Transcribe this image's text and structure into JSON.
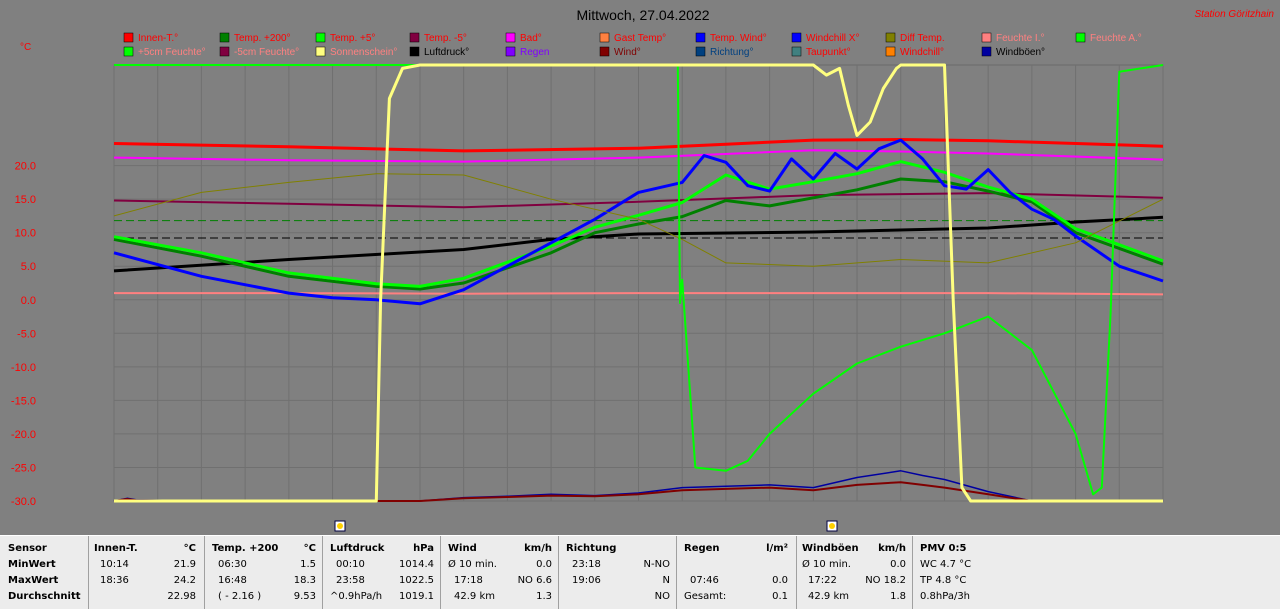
{
  "header": {
    "title": "Mittwoch, 27.04.2022",
    "station": "Station Göritzhain",
    "unit": "°C"
  },
  "colors": {
    "background": "#808080",
    "innen": "#ff0000",
    "temp200": "#008000",
    "temp5": "#00ff00",
    "temp_minus5": "#800040",
    "bad": "#ff00ff",
    "luftdruck": "#000000",
    "wind": "#800000",
    "windboeen": "#0000a0",
    "sonnenschein": "#ffff80",
    "temp_wind": "#0000ff",
    "feuchte_i": "#ff8080"
  },
  "legend": [
    {
      "label": "Innen-T.°",
      "color": "#ff0000",
      "text_color": "#ff0000"
    },
    {
      "label": "Temp. +200°",
      "color": "#008000",
      "text_color": "#ff0000"
    },
    {
      "label": "Temp. +5°",
      "color": "#00ff00",
      "text_color": "#ff0000"
    },
    {
      "label": "Temp. -5°",
      "color": "#800040",
      "text_color": "#ff0000"
    },
    {
      "label": "Bad°",
      "color": "#ff00ff",
      "text_color": "#ff0000"
    },
    {
      "label": "Gast Temp°",
      "color": "#ff8040",
      "text_color": "#ff0000"
    },
    {
      "label": "Temp. Wind°",
      "color": "#0000ff",
      "text_color": "#ff0000"
    },
    {
      "label": "Windchill X°",
      "color": "#0000ff",
      "text_color": "#ff0000"
    },
    {
      "label": "Diff Temp.",
      "color": "#808000",
      "text_color": "#ff0000"
    },
    {
      "label": "Feuchte I.°",
      "color": "#ff8080",
      "text_color": "#ff8080"
    },
    {
      "label": "Feuchte A.°",
      "color": "#00ff00",
      "text_color": "#ff8080"
    },
    {
      "label": "+5cm Feuchte°",
      "color": "#00ff00",
      "text_color": "#ff8080"
    },
    {
      "label": "-5cm Feuchte°",
      "color": "#800040",
      "text_color": "#ff8080"
    },
    {
      "label": "Sonnenschein°",
      "color": "#ffff80",
      "text_color": "#ff8080"
    },
    {
      "label": "Luftdruck°",
      "color": "#000000",
      "text_color": "#000000"
    },
    {
      "label": "Regen",
      "color": "#8000ff",
      "text_color": "#8000ff"
    },
    {
      "label": "Wind°",
      "color": "#800000",
      "text_color": "#800000"
    },
    {
      "label": "Richtung°",
      "color": "#004080",
      "text_color": "#004080"
    },
    {
      "label": "Taupunkt°",
      "color": "#408080",
      "text_color": "#ff0000"
    },
    {
      "label": "Windchill°",
      "color": "#ff8000",
      "text_color": "#ff0000"
    },
    {
      "label": "Windböen°",
      "color": "#0000a0",
      "text_color": "#000000"
    }
  ],
  "chart_data": {
    "type": "line",
    "title": "Mittwoch, 27.04.2022",
    "ylabel": "°C",
    "ylim": [
      -30,
      35
    ],
    "yticks": [
      "20.0",
      "15.0",
      "10.0",
      "5.0",
      "0.0",
      "-5.0",
      "-10.0",
      "-15.0",
      "-20.0",
      "-25.0",
      "-30.0"
    ],
    "ytick_values": [
      20,
      15,
      10,
      5,
      0,
      -5,
      -10,
      -15,
      -20,
      -25,
      -30
    ],
    "x_hours": [
      0,
      24
    ],
    "grid": true,
    "series": [
      {
        "name": "Innen-T.°",
        "color": "#ff0000",
        "width": 3,
        "x": [
          0,
          4,
          8,
          12,
          14,
          16,
          18,
          20,
          24
        ],
        "y": [
          23.3,
          22.8,
          22.2,
          22.6,
          23.2,
          23.8,
          23.9,
          23.7,
          22.9
        ]
      },
      {
        "name": "Bad°",
        "color": "#ff00ff",
        "width": 2,
        "x": [
          0,
          4,
          8,
          12,
          16,
          18,
          20,
          24
        ],
        "y": [
          21.2,
          20.8,
          20.6,
          21.2,
          22.3,
          22.1,
          21.8,
          20.9
        ]
      },
      {
        "name": "Temp. -5°",
        "color": "#800040",
        "width": 2,
        "x": [
          0,
          4,
          8,
          12,
          16,
          20,
          24
        ],
        "y": [
          14.8,
          14.3,
          13.8,
          14.6,
          15.6,
          15.9,
          15.2
        ]
      },
      {
        "name": "Luftdruck°",
        "color": "#000000",
        "width": 3,
        "x": [
          0,
          4,
          8,
          10,
          12,
          16,
          20,
          22,
          24
        ],
        "y": [
          4.3,
          6.0,
          7.5,
          9.0,
          9.8,
          10.1,
          10.7,
          11.6,
          12.3
        ]
      },
      {
        "name": "Feuchte I.°",
        "color": "#ff8080",
        "width": 2,
        "x": [
          0,
          4,
          8,
          12,
          16,
          20,
          24
        ],
        "y": [
          1.0,
          1.0,
          0.9,
          1.0,
          1.0,
          1.0,
          0.8
        ]
      },
      {
        "name": "Temp. +200°",
        "color": "#008000",
        "width": 3,
        "x": [
          0,
          2,
          4,
          6,
          7,
          8,
          10,
          11,
          12,
          13,
          14,
          15,
          16,
          17,
          18,
          19,
          20,
          21,
          22,
          24
        ],
        "y": [
          9.0,
          6.5,
          3.5,
          2.0,
          1.6,
          2.5,
          7.0,
          10.0,
          11.3,
          12.4,
          14.8,
          14.0,
          15.2,
          16.4,
          18.0,
          17.6,
          16.2,
          14.6,
          10.0,
          5.3
        ]
      },
      {
        "name": "Temp. +5°",
        "color": "#00ff00",
        "width": 3,
        "x": [
          0,
          2,
          4,
          6,
          7,
          8,
          10,
          11,
          12,
          13,
          14,
          15,
          16,
          17,
          18,
          19,
          20,
          21,
          22,
          24
        ],
        "y": [
          9.4,
          7.0,
          4.0,
          2.4,
          2.0,
          3.2,
          8.0,
          10.8,
          12.6,
          14.5,
          18.6,
          16.5,
          17.6,
          18.8,
          20.6,
          19.0,
          16.8,
          15.0,
          10.6,
          5.8
        ]
      },
      {
        "name": "Temp. Wind°",
        "color": "#0000ff",
        "width": 3,
        "x": [
          0,
          2,
          4,
          5,
          6,
          7,
          8,
          9,
          10,
          11,
          12,
          13,
          13.5,
          14,
          14.5,
          15,
          15.5,
          16,
          16.5,
          17,
          17.5,
          18,
          18.5,
          19,
          19.5,
          20,
          20.5,
          21,
          21.5,
          22,
          23,
          24
        ],
        "y": [
          7.0,
          3.5,
          1.0,
          0.3,
          0.0,
          -0.6,
          1.5,
          5.0,
          8.5,
          12.0,
          16.0,
          17.5,
          21.5,
          20.5,
          17.0,
          16.2,
          21.0,
          18.0,
          21.8,
          19.5,
          22.5,
          23.8,
          21.0,
          17.0,
          16.5,
          19.4,
          16.0,
          13.5,
          12.0,
          9.5,
          5.0,
          2.8
        ]
      },
      {
        "name": "Diff Temp.",
        "color": "#808000",
        "width": 1,
        "x": [
          0,
          2,
          4,
          6,
          8,
          10,
          12,
          13,
          14,
          16,
          18,
          20,
          22,
          24
        ],
        "y": [
          12.5,
          16.0,
          17.5,
          18.8,
          18.6,
          15.0,
          12.0,
          9.0,
          5.5,
          5.0,
          6.0,
          5.5,
          8.5,
          15.0
        ]
      },
      {
        "name": "Windböen°",
        "color": "#0000a0",
        "width": 1.5,
        "x": [
          0,
          0.3,
          0.5,
          2,
          4,
          6,
          7,
          8,
          9,
          10,
          11,
          12,
          13,
          14,
          15,
          16,
          17,
          18,
          18.5,
          19,
          20,
          21,
          22,
          23,
          24
        ],
        "y": [
          -30,
          -29.6,
          -29.8,
          -30,
          -30,
          -30,
          -30,
          -29.5,
          -29.3,
          -29.0,
          -29.2,
          -28.8,
          -28.0,
          -27.8,
          -27.6,
          -28.0,
          -26.5,
          -25.5,
          -26.2,
          -26.8,
          -28.6,
          -30,
          -30,
          -30,
          -30
        ]
      },
      {
        "name": "Wind°",
        "color": "#800000",
        "width": 2,
        "x": [
          0,
          0.3,
          0.5,
          2,
          4,
          6,
          7,
          8,
          9,
          10,
          11,
          12,
          13,
          14,
          15,
          16,
          17,
          18,
          18.5,
          19,
          20,
          21,
          22,
          23,
          24
        ],
        "y": [
          -30,
          -29.7,
          -29.9,
          -30,
          -30,
          -30,
          -30,
          -29.6,
          -29.4,
          -29.2,
          -29.3,
          -29.0,
          -28.4,
          -28.2,
          -28.0,
          -28.4,
          -27.6,
          -27.2,
          -27.6,
          -28.0,
          -29.0,
          -30,
          -30,
          -30,
          -30
        ]
      },
      {
        "name": "Feuchte A.°",
        "color": "#00ff00",
        "width": 2,
        "x": [
          0,
          12.9,
          12.95,
          13.0,
          13.3,
          14,
          14.5,
          15,
          16,
          17,
          18,
          19,
          20,
          21,
          22,
          22.4,
          22.6,
          22.8,
          23,
          24
        ],
        "y": [
          35,
          35,
          -0.5,
          3.0,
          -25,
          -25.5,
          -24.0,
          -20.0,
          -14.0,
          -9.5,
          -7.0,
          -5.0,
          -2.5,
          -7.5,
          -20.0,
          -29.0,
          -28.0,
          -2.0,
          34.0,
          35
        ]
      },
      {
        "name": "Sonnenschein°",
        "color": "#ffff80",
        "width": 3,
        "x": [
          0,
          6.0,
          6.1,
          6.3,
          6.6,
          7.0,
          16.0,
          16.3,
          16.6,
          16.8,
          17.0,
          17.3,
          17.6,
          17.9,
          18.0,
          19.0,
          19.2,
          19.4,
          19.6,
          20.0,
          20.4,
          24
        ],
        "y": [
          -30,
          -30,
          0,
          30,
          34.5,
          35,
          35,
          33.5,
          34.5,
          29.0,
          24.5,
          26.5,
          31.5,
          34.5,
          35,
          35,
          0,
          -28,
          -30,
          -30,
          -30,
          -30
        ]
      }
    ]
  },
  "stats": {
    "headers": {
      "sensor": "Sensor",
      "innen": "Innen-T.",
      "innen_unit": "°C",
      "temp": "Temp. +200",
      "temp_unit": "°C",
      "luft": "Luftdruck",
      "luft_unit": "hPa",
      "wind": "Wind",
      "wind_unit": "km/h",
      "richtung": "Richtung",
      "regen": "Regen",
      "regen_unit": "l/m²",
      "boeen": "Windböen",
      "boeen_unit": "km/h",
      "pmv": "PMV 0:5"
    },
    "rows": {
      "min": {
        "label": "MinWert",
        "innen_t": "10:14",
        "innen_v": "21.9",
        "temp_t": "06:30",
        "temp_v": "1.5",
        "luft_t": "00:10",
        "luft_v": "1014.4",
        "wind_t": "Ø 10 min.",
        "wind_v": "0.0",
        "richt_t": "23:18",
        "richt_v": "N-NO",
        "regen_t": "",
        "regen_v": "",
        "boeen_t": "Ø 10 min.",
        "boeen_v": "0.0",
        "pmv": "WC 4.7 °C"
      },
      "max": {
        "label": "MaxWert",
        "innen_t": "18:36",
        "innen_v": "24.2",
        "temp_t": "16:48",
        "temp_v": "18.3",
        "luft_t": "23:58",
        "luft_v": "1022.5",
        "wind_t": "17:18",
        "wind_v": "NO 6.6",
        "richt_t": "19:06",
        "richt_v": "N",
        "regen_t": "07:46",
        "regen_v": "0.0",
        "boeen_t": "17:22",
        "boeen_v": "NO 18.2",
        "pmv": "TP 4.8 °C"
      },
      "avg": {
        "label": "Durchschnitt",
        "innen_t": "",
        "innen_v": "22.98",
        "temp_t": "( - 2.16 )",
        "temp_v": "9.53",
        "luft_t": "^0.9hPa/h",
        "luft_v": "1019.1",
        "wind_t": "42.9 km",
        "wind_v": "1.3",
        "richt_t": "",
        "richt_v": "NO",
        "regen_t": "Gesamt:",
        "regen_v": "0.1",
        "boeen_t": "42.9 km",
        "boeen_v": "1.8",
        "pmv": "0.8hPa/3h"
      }
    }
  }
}
